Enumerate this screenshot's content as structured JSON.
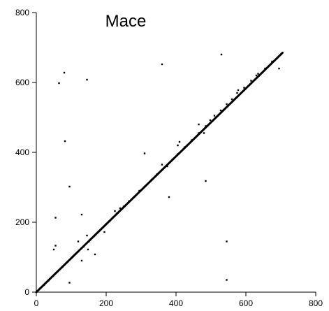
{
  "chart_data": {
    "type": "scatter",
    "title": "Mace",
    "xlabel": "",
    "ylabel": "",
    "xlim": [
      0,
      800
    ],
    "ylim": [
      0,
      800
    ],
    "x_ticks": [
      0,
      200,
      400,
      600,
      800
    ],
    "y_ticks": [
      0,
      200,
      400,
      600,
      800
    ],
    "x_tick_labels": [
      "0",
      "200",
      "400",
      "600",
      "800"
    ],
    "y_tick_labels": [
      "0",
      "200",
      "400",
      "600",
      "800"
    ],
    "grid": false,
    "legend": "none",
    "colors": {
      "points": "#000000",
      "axes": "#000000",
      "background": "#ffffff"
    },
    "series": [
      {
        "diagonal_line": {
          "x": [
            0,
            705
          ],
          "y": [
            0,
            685
          ]
        },
        "points": [
          {
            "x": 10,
            "y": 10
          },
          {
            "x": 22,
            "y": 20
          },
          {
            "x": 35,
            "y": 33
          },
          {
            "x": 48,
            "y": 46
          },
          {
            "x": 60,
            "y": 58
          },
          {
            "x": 75,
            "y": 72
          },
          {
            "x": 90,
            "y": 87
          },
          {
            "x": 105,
            "y": 102
          },
          {
            "x": 120,
            "y": 116
          },
          {
            "x": 135,
            "y": 130
          },
          {
            "x": 150,
            "y": 145
          },
          {
            "x": 165,
            "y": 160
          },
          {
            "x": 180,
            "y": 175
          },
          {
            "x": 200,
            "y": 195
          },
          {
            "x": 220,
            "y": 214
          },
          {
            "x": 225,
            "y": 232
          },
          {
            "x": 230,
            "y": 225
          },
          {
            "x": 240,
            "y": 240
          },
          {
            "x": 250,
            "y": 245
          },
          {
            "x": 265,
            "y": 260
          },
          {
            "x": 280,
            "y": 273
          },
          {
            "x": 295,
            "y": 290
          },
          {
            "x": 310,
            "y": 302
          },
          {
            "x": 330,
            "y": 322
          },
          {
            "x": 345,
            "y": 337
          },
          {
            "x": 360,
            "y": 365
          },
          {
            "x": 375,
            "y": 360
          },
          {
            "x": 390,
            "y": 380
          },
          {
            "x": 405,
            "y": 395
          },
          {
            "x": 425,
            "y": 415
          },
          {
            "x": 445,
            "y": 435
          },
          {
            "x": 465,
            "y": 455
          },
          {
            "x": 485,
            "y": 475
          },
          {
            "x": 498,
            "y": 492
          },
          {
            "x": 510,
            "y": 505
          },
          {
            "x": 528,
            "y": 520
          },
          {
            "x": 545,
            "y": 538
          },
          {
            "x": 560,
            "y": 552
          },
          {
            "x": 578,
            "y": 578
          },
          {
            "x": 595,
            "y": 585
          },
          {
            "x": 615,
            "y": 605
          },
          {
            "x": 635,
            "y": 625
          },
          {
            "x": 655,
            "y": 640
          },
          {
            "x": 675,
            "y": 660
          },
          {
            "x": 690,
            "y": 670
          },
          {
            "x": 700,
            "y": 680
          },
          {
            "x": 65,
            "y": 598
          },
          {
            "x": 80,
            "y": 628
          },
          {
            "x": 145,
            "y": 608
          },
          {
            "x": 360,
            "y": 652
          },
          {
            "x": 530,
            "y": 680
          },
          {
            "x": 695,
            "y": 640
          },
          {
            "x": 82,
            "y": 432
          },
          {
            "x": 95,
            "y": 302
          },
          {
            "x": 310,
            "y": 397
          },
          {
            "x": 465,
            "y": 480
          },
          {
            "x": 410,
            "y": 430
          },
          {
            "x": 480,
            "y": 455
          },
          {
            "x": 485,
            "y": 318
          },
          {
            "x": 380,
            "y": 272
          },
          {
            "x": 55,
            "y": 213
          },
          {
            "x": 130,
            "y": 222
          },
          {
            "x": 55,
            "y": 133
          },
          {
            "x": 50,
            "y": 122
          },
          {
            "x": 120,
            "y": 145
          },
          {
            "x": 145,
            "y": 162
          },
          {
            "x": 148,
            "y": 122
          },
          {
            "x": 168,
            "y": 108
          },
          {
            "x": 130,
            "y": 90
          },
          {
            "x": 195,
            "y": 172
          },
          {
            "x": 95,
            "y": 27
          },
          {
            "x": 545,
            "y": 145
          },
          {
            "x": 545,
            "y": 35
          },
          {
            "x": 405,
            "y": 420
          },
          {
            "x": 575,
            "y": 570
          },
          {
            "x": 630,
            "y": 620
          }
        ]
      }
    ]
  }
}
